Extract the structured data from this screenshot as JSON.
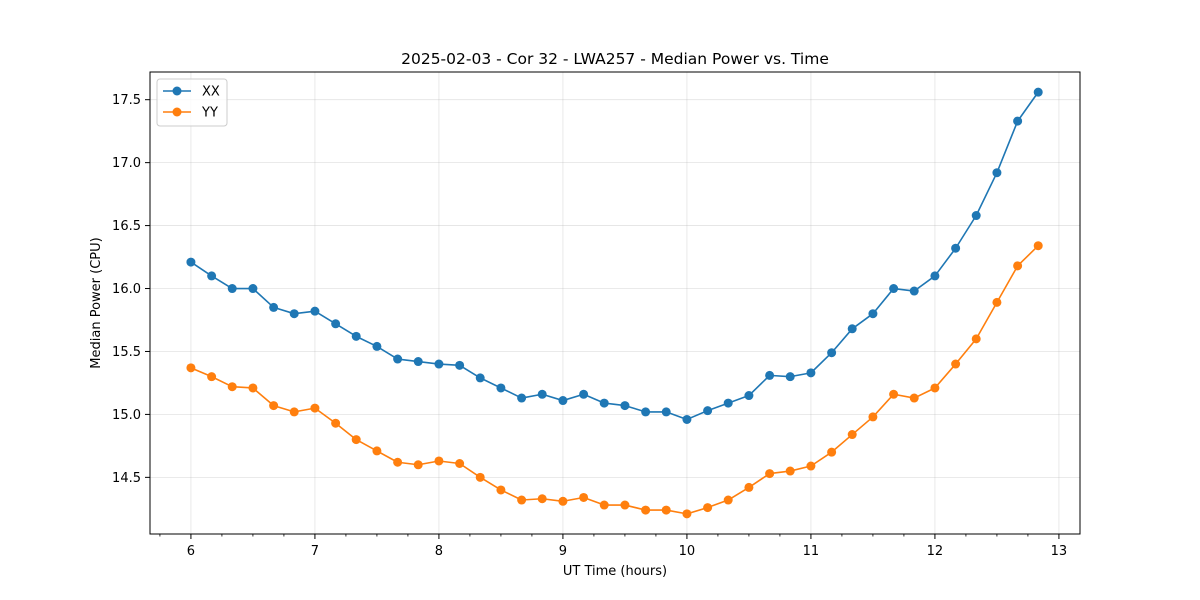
{
  "chart_data": {
    "type": "line",
    "title": "2025-02-03 - Cor 32 - LWA257 - Median Power vs. Time",
    "xlabel": "UT Time (hours)",
    "ylabel": "Median Power (CPU)",
    "xlim": [
      5.67,
      13.17
    ],
    "ylim": [
      14.05,
      17.72
    ],
    "xticks": [
      6,
      7,
      8,
      9,
      10,
      11,
      12,
      13
    ],
    "xtick_labels": [
      "6",
      "7",
      "8",
      "9",
      "10",
      "11",
      "12",
      "13"
    ],
    "yticks": [
      14.5,
      15.0,
      15.5,
      16.0,
      16.5,
      17.0,
      17.5
    ],
    "ytick_labels": [
      "14.5",
      "15.0",
      "15.5",
      "16.0",
      "16.5",
      "17.0",
      "17.5"
    ],
    "grid": true,
    "legend_position": "top-left",
    "x": [
      6.0,
      6.167,
      6.333,
      6.5,
      6.667,
      6.833,
      7.0,
      7.167,
      7.333,
      7.5,
      7.667,
      7.833,
      8.0,
      8.167,
      8.333,
      8.5,
      8.667,
      8.833,
      9.0,
      9.167,
      9.333,
      9.5,
      9.667,
      9.833,
      10.0,
      10.167,
      10.333,
      10.5,
      10.667,
      10.833,
      11.0,
      11.167,
      11.333,
      11.5,
      11.667,
      11.833,
      12.0,
      12.167,
      12.333,
      12.5,
      12.667,
      12.833
    ],
    "series": [
      {
        "name": "XX",
        "color": "#1f77b4",
        "values": [
          16.21,
          16.1,
          16.0,
          16.0,
          15.85,
          15.8,
          15.82,
          15.72,
          15.62,
          15.54,
          15.44,
          15.42,
          15.4,
          15.39,
          15.29,
          15.21,
          15.13,
          15.16,
          15.11,
          15.16,
          15.09,
          15.07,
          15.02,
          15.02,
          14.96,
          15.03,
          15.09,
          15.15,
          15.31,
          15.3,
          15.33,
          15.49,
          15.68,
          15.8,
          16.0,
          15.98,
          16.1,
          16.32,
          16.58,
          16.92,
          17.33,
          17.56
        ]
      },
      {
        "name": "YY",
        "color": "#ff7f0e",
        "values": [
          15.37,
          15.3,
          15.22,
          15.21,
          15.07,
          15.02,
          15.05,
          14.93,
          14.8,
          14.71,
          14.62,
          14.6,
          14.63,
          14.61,
          14.5,
          14.4,
          14.32,
          14.33,
          14.31,
          14.34,
          14.28,
          14.28,
          14.24,
          14.24,
          14.21,
          14.26,
          14.32,
          14.42,
          14.53,
          14.55,
          14.59,
          14.7,
          14.84,
          14.98,
          15.16,
          15.13,
          15.21,
          15.4,
          15.6,
          15.89,
          16.18,
          16.34
        ]
      }
    ]
  }
}
